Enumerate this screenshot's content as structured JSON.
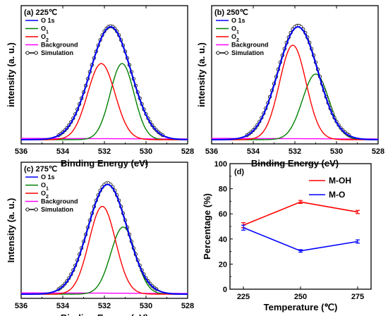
{
  "chart_data": [
    {
      "type": "line",
      "panel_label": "(a) 225℃",
      "xlabel": "Binding Energy (eV)",
      "ylabel": "intensity (a. u.)",
      "xlim": [
        536,
        528
      ],
      "x_ticks": [
        536,
        534,
        532,
        530,
        528
      ],
      "y_ticks_shown": false,
      "legend": {
        "position": "top-left",
        "entries": [
          "O 1s",
          "O₁",
          "O₂",
          "Background",
          "Simulation"
        ]
      },
      "series": [
        {
          "name": "O 1s",
          "color": "#0000ff",
          "shape": "gaussian",
          "center": 531.7,
          "fwhm": 2.3,
          "height": 0.86
        },
        {
          "name": "O₁",
          "color": "#008000",
          "shape": "gaussian",
          "center": 531.15,
          "fwhm": 1.35,
          "height": 0.58
        },
        {
          "name": "O₂",
          "color": "#ff0000",
          "shape": "gaussian",
          "center": 532.15,
          "fwhm": 1.55,
          "height": 0.58
        },
        {
          "name": "Background",
          "color": "#ff00ff",
          "shape": "linear",
          "y_at_536": 0.01,
          "y_at_528": 0.005
        },
        {
          "name": "Simulation",
          "color": "#000000",
          "shape": "gaussian",
          "center": 531.7,
          "fwhm": 2.32,
          "height": 0.865,
          "markers": "open-circle"
        }
      ]
    },
    {
      "type": "line",
      "panel_label": "(b) 250℃",
      "xlabel": "Binding Energy (eV)",
      "ylabel": "intensity (a. u.)",
      "xlim": [
        536,
        528
      ],
      "x_ticks": [
        536,
        534,
        532,
        530,
        528
      ],
      "y_ticks_shown": false,
      "legend": {
        "position": "top-left",
        "entries": [
          "O 1s",
          "O₁",
          "O₂",
          "Background",
          "Simulation"
        ]
      },
      "series": [
        {
          "name": "O 1s",
          "color": "#0000ff",
          "shape": "gaussian",
          "center": 531.85,
          "fwhm": 2.25,
          "height": 0.86
        },
        {
          "name": "O₁",
          "color": "#008000",
          "shape": "gaussian",
          "center": 531.0,
          "fwhm": 1.5,
          "height": 0.5
        },
        {
          "name": "O₂",
          "color": "#ff0000",
          "shape": "gaussian",
          "center": 532.1,
          "fwhm": 1.5,
          "height": 0.72
        },
        {
          "name": "Background",
          "color": "#ff00ff",
          "shape": "linear",
          "y_at_536": 0.01,
          "y_at_528": 0.005
        },
        {
          "name": "Simulation",
          "color": "#000000",
          "shape": "gaussian",
          "center": 531.85,
          "fwhm": 2.27,
          "height": 0.87,
          "markers": "open-circle"
        }
      ]
    },
    {
      "type": "line",
      "panel_label": "(c) 275℃",
      "xlabel": "Binding Energy (eV)",
      "ylabel": "Intensity (a. u.)",
      "xlim": [
        536,
        528
      ],
      "x_ticks": [
        536,
        534,
        532,
        530,
        528
      ],
      "y_ticks_shown": false,
      "legend": {
        "position": "top-left",
        "entries": [
          "O 1s",
          "O₁",
          "O₂",
          "Background",
          "Simulation"
        ]
      },
      "series": [
        {
          "name": "O 1s",
          "color": "#0000ff",
          "shape": "gaussian",
          "center": 531.85,
          "fwhm": 2.2,
          "height": 0.85
        },
        {
          "name": "O₁",
          "color": "#008000",
          "shape": "gaussian",
          "center": 531.1,
          "fwhm": 1.4,
          "height": 0.52
        },
        {
          "name": "O₂",
          "color": "#ff0000",
          "shape": "gaussian",
          "center": 532.1,
          "fwhm": 1.5,
          "height": 0.68
        },
        {
          "name": "Background",
          "color": "#ff00ff",
          "shape": "linear",
          "y_at_536": 0.01,
          "y_at_528": 0.005
        },
        {
          "name": "Simulation",
          "color": "#000000",
          "shape": "gaussian",
          "center": 531.85,
          "fwhm": 2.22,
          "height": 0.86,
          "markers": "open-circle"
        }
      ]
    },
    {
      "type": "line",
      "panel_label": "(d)",
      "xlabel": "Temperature (℃)",
      "ylabel": "Percentage (%)",
      "ylim": [
        0,
        100
      ],
      "y_ticks": [
        0,
        20,
        40,
        60,
        80,
        100
      ],
      "categories": [
        "225",
        "250",
        "275"
      ],
      "legend": {
        "position": "top-right"
      },
      "series": [
        {
          "name": "M-OH",
          "color": "#ff0000",
          "values": [
            51,
            69.5,
            61.5
          ],
          "error": [
            2,
            1.2,
            1.3
          ]
        },
        {
          "name": "M-O",
          "color": "#0000ff",
          "values": [
            49,
            30.5,
            38
          ],
          "error": [
            2,
            1,
            1.3
          ]
        }
      ]
    }
  ]
}
